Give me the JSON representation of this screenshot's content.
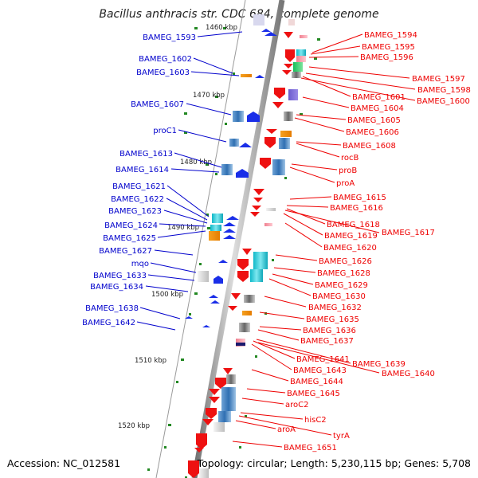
{
  "title": "Bacillus anthracis str. CDC 684, complete genome",
  "footer": {
    "accession": "Accession: NC_012581",
    "topology": "Topology: circular; Length: 5,230,115 bp; Genes: 5,708"
  },
  "scale_labels": [
    "1460 kbp",
    "1470 kbp",
    "1480 kbp",
    "1490 kbp",
    "1500 kbp",
    "1510 kbp",
    "1520 kbp"
  ],
  "left_labels": [
    "BAMEG_1593",
    "BAMEG_1602",
    "BAMEG_1603",
    "BAMEG_1607",
    "proC1",
    "BAMEG_1613",
    "BAMEG_1614",
    "BAMEG_1621",
    "BAMEG_1622",
    "BAMEG_1623",
    "BAMEG_1624",
    "BAMEG_1625",
    "BAMEG_1627",
    "mqo",
    "BAMEG_1633",
    "BAMEG_1634",
    "BAMEG_1638",
    "BAMEG_1642"
  ],
  "right_labels": [
    "BAMEG_1594",
    "BAMEG_1595",
    "BAMEG_1596",
    "BAMEG_1597",
    "BAMEG_1598",
    "BAMEG_1601",
    "BAMEG_1600",
    "BAMEG_1604",
    "BAMEG_1605",
    "BAMEG_1606",
    "BAMEG_1608",
    "rocB",
    "proB",
    "proA",
    "BAMEG_1615",
    "BAMEG_1616",
    "BAMEG_1618",
    "BAMEG_1617",
    "BAMEG_1619",
    "BAMEG_1620",
    "BAMEG_1626",
    "BAMEG_1628",
    "BAMEG_1629",
    "BAMEG_1630",
    "BAMEG_1632",
    "BAMEG_1635",
    "BAMEG_1636",
    "BAMEG_1637",
    "BAMEG_1641",
    "BAMEG_1639",
    "BAMEG_1643",
    "BAMEG_1640",
    "BAMEG_1644",
    "BAMEG_1645",
    "aroC2",
    "hisC2",
    "aroA",
    "tyrA",
    "BAMEG_1651"
  ],
  "colors": {
    "left_label": "#0000cc",
    "right_label": "#ee0000",
    "forward_gene": "#1a2ee8",
    "reverse_gene": "#ee1111",
    "scale_dot": "#228822",
    "backbone": "#8a8a8a"
  }
}
